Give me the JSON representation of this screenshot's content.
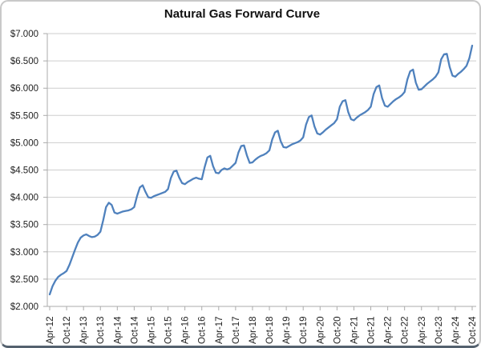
{
  "chart_data": {
    "type": "line",
    "title": "Natural Gas Forward Curve",
    "xlabel": "",
    "ylabel": "",
    "legend": "none",
    "grid": "horizontal",
    "ylim": [
      2.0,
      7.0
    ],
    "ytick_step": 0.5,
    "y_tick_labels": [
      "$7.000",
      "$6.500",
      "$6.000",
      "$5.500",
      "$5.000",
      "$4.500",
      "$4.000",
      "$3.500",
      "$3.000",
      "$2.500",
      "$2.000"
    ],
    "x_tick_labels": [
      "Apr-12",
      "Oct-12",
      "Apr-13",
      "Oct-13",
      "Apr-14",
      "Oct-14",
      "Apr-15",
      "Oct-15",
      "Apr-16",
      "Oct-16",
      "Apr-17",
      "Oct-17",
      "Apr-18",
      "Oct-18",
      "Apr-19",
      "Oct-19",
      "Apr-20",
      "Oct-20",
      "Apr-21",
      "Oct-21",
      "Apr-22",
      "Oct-22",
      "Apr-23",
      "Oct-23",
      "Apr-24",
      "Oct-24"
    ],
    "x_frequency": "monthly",
    "points_per_tick": 6,
    "series": [
      {
        "name": "Natural Gas Forward Curve",
        "color": "#4F81BD",
        "values": [
          2.22,
          2.37,
          2.47,
          2.54,
          2.58,
          2.61,
          2.65,
          2.76,
          2.9,
          3.04,
          3.17,
          3.26,
          3.3,
          3.32,
          3.29,
          3.27,
          3.28,
          3.31,
          3.37,
          3.58,
          3.82,
          3.9,
          3.86,
          3.72,
          3.7,
          3.72,
          3.74,
          3.75,
          3.76,
          3.78,
          3.82,
          4.02,
          4.18,
          4.22,
          4.1,
          4.0,
          3.99,
          4.02,
          4.04,
          4.06,
          4.08,
          4.1,
          4.15,
          4.35,
          4.47,
          4.49,
          4.36,
          4.26,
          4.24,
          4.28,
          4.31,
          4.34,
          4.36,
          4.34,
          4.33,
          4.55,
          4.73,
          4.76,
          4.57,
          4.45,
          4.44,
          4.5,
          4.53,
          4.51,
          4.53,
          4.58,
          4.63,
          4.82,
          4.94,
          4.95,
          4.77,
          4.63,
          4.64,
          4.69,
          4.73,
          4.76,
          4.78,
          4.81,
          4.86,
          5.06,
          5.19,
          5.22,
          5.03,
          4.92,
          4.91,
          4.94,
          4.97,
          4.99,
          5.01,
          5.04,
          5.1,
          5.33,
          5.47,
          5.5,
          5.3,
          5.17,
          5.15,
          5.19,
          5.24,
          5.28,
          5.32,
          5.36,
          5.43,
          5.66,
          5.76,
          5.78,
          5.56,
          5.43,
          5.41,
          5.46,
          5.5,
          5.53,
          5.56,
          5.6,
          5.66,
          5.89,
          6.02,
          6.05,
          5.82,
          5.68,
          5.66,
          5.71,
          5.76,
          5.8,
          5.83,
          5.87,
          5.93,
          6.16,
          6.31,
          6.34,
          6.1,
          5.97,
          5.98,
          6.03,
          6.08,
          6.12,
          6.16,
          6.21,
          6.29,
          6.53,
          6.62,
          6.63,
          6.39,
          6.23,
          6.21,
          6.26,
          6.3,
          6.35,
          6.41,
          6.55,
          6.78
        ]
      }
    ],
    "colors": {
      "line": "#4F81BD",
      "gridline": "#CDCDCD",
      "axis": "#ABABAB",
      "tick": "#ABABAB",
      "label_text": "#1f1f1f",
      "title_text": "#111111"
    }
  }
}
